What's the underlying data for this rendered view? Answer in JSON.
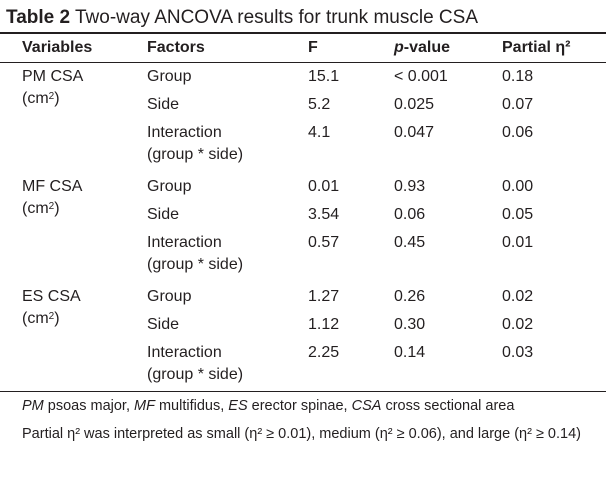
{
  "caption": {
    "label": "Table 2",
    "text": "Two-way ANCOVA results for trunk muscle CSA"
  },
  "headers": {
    "variables": "Variables",
    "factors": "Factors",
    "f": "F",
    "p_italic": "p",
    "p_rest": "-value",
    "eta": "Partial η²"
  },
  "unit": {
    "prefix": "(cm",
    "sup": "2",
    "suffix": ")"
  },
  "groups": [
    {
      "variable": "PM CSA",
      "rows": [
        {
          "factor": "Group",
          "factor2": "",
          "f": "15.1",
          "p": "< 0.001",
          "eta": "0.18"
        },
        {
          "factor": "Side",
          "factor2": "",
          "f": "5.2",
          "p": "0.025",
          "eta": "0.07"
        },
        {
          "factor": "Interaction",
          "factor2": "(group * side)",
          "f": "4.1",
          "p": "0.047",
          "eta": "0.06"
        }
      ]
    },
    {
      "variable": "MF CSA",
      "rows": [
        {
          "factor": "Group",
          "factor2": "",
          "f": "0.01",
          "p": "0.93",
          "eta": "0.00"
        },
        {
          "factor": "Side",
          "factor2": "",
          "f": "3.54",
          "p": "0.06",
          "eta": "0.05"
        },
        {
          "factor": "Interaction",
          "factor2": "(group * side)",
          "f": "0.57",
          "p": "0.45",
          "eta": "0.01"
        }
      ]
    },
    {
      "variable": "ES CSA",
      "rows": [
        {
          "factor": "Group",
          "factor2": "",
          "f": "1.27",
          "p": "0.26",
          "eta": "0.02"
        },
        {
          "factor": "Side",
          "factor2": "",
          "f": "1.12",
          "p": "0.30",
          "eta": "0.02"
        },
        {
          "factor": "Interaction",
          "factor2": "(group * side)",
          "f": "2.25",
          "p": "0.14",
          "eta": "0.03"
        }
      ]
    }
  ],
  "footnotes": {
    "abbrev": [
      {
        "abbr": "PM",
        "def": " psoas major, "
      },
      {
        "abbr": "MF",
        "def": " multifidus, "
      },
      {
        "abbr": "ES",
        "def": " erector spinae, "
      },
      {
        "abbr": "CSA",
        "def": " cross sectional area"
      }
    ],
    "interpretation": "Partial η² was interpreted as small (η² ≥ 0.01), medium (η² ≥ 0.06), and large (η² ≥ 0.14)"
  }
}
